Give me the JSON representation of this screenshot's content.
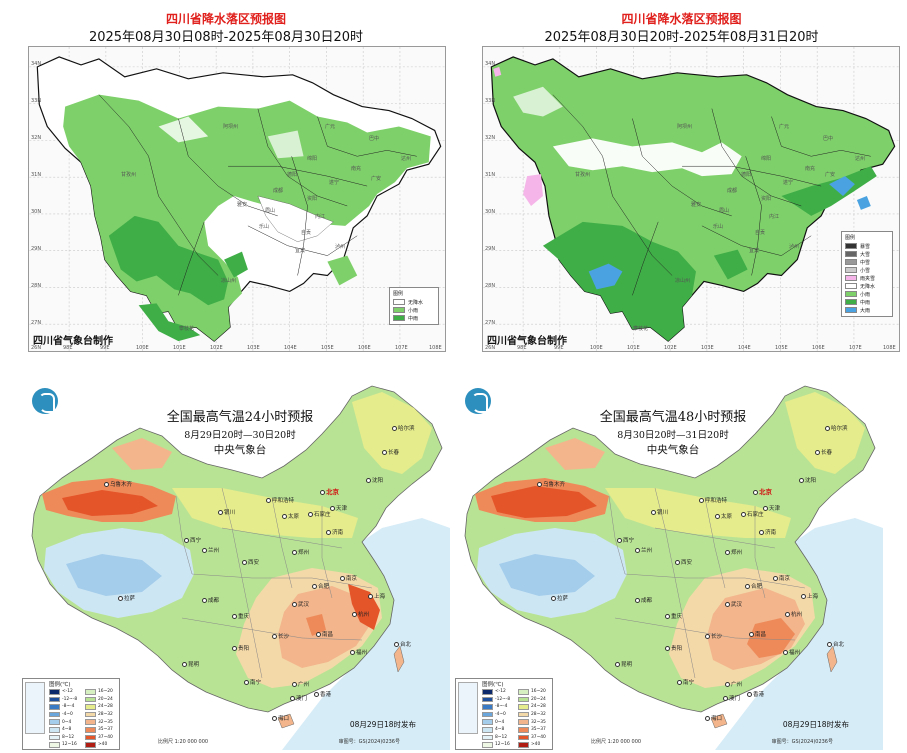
{
  "rain_maps": [
    {
      "title": "四川省降水落区预报图",
      "time_range": "2025年08月30日08时-2025年08月30日20时",
      "credit": "四川省气象台制作",
      "legend_title": "图例",
      "legend": [
        {
          "label": "无降水",
          "color": "#ffffff"
        },
        {
          "label": "小雨",
          "color": "#7ed06a"
        },
        {
          "label": "中雨",
          "color": "#3fae47"
        }
      ],
      "lon_ticks": [
        "98E",
        "99E",
        "100E",
        "101E",
        "102E",
        "103E",
        "104E",
        "105E",
        "106E",
        "107E",
        "108E"
      ],
      "lat_ticks": [
        "34N",
        "33N",
        "32N",
        "31N",
        "30N",
        "29N",
        "28N",
        "27N",
        "26N"
      ]
    },
    {
      "title": "四川省降水落区预报图",
      "time_range": "2025年08月30日20时-2025年08月31日20时",
      "credit": "四川省气象台制作",
      "legend_title": "图例",
      "legend": [
        {
          "label": "暴雪",
          "color": "#333333"
        },
        {
          "label": "大雪",
          "color": "#666666"
        },
        {
          "label": "中雪",
          "color": "#999999"
        },
        {
          "label": "小雪",
          "color": "#cccccc"
        },
        {
          "label": "雨夹雪",
          "color": "#f5b5e8"
        },
        {
          "label": "无降水",
          "color": "#ffffff"
        },
        {
          "label": "小雨",
          "color": "#7ed06a"
        },
        {
          "label": "中雨",
          "color": "#3fae47"
        },
        {
          "label": "大雨",
          "color": "#4aa3e0"
        }
      ],
      "lon_ticks": [
        "98E",
        "99E",
        "100E",
        "101E",
        "102E",
        "103E",
        "104E",
        "105E",
        "106E",
        "107E",
        "108E"
      ],
      "lat_ticks": [
        "34N",
        "33N",
        "32N",
        "31N",
        "30N",
        "29N",
        "28N",
        "27N",
        "26N"
      ]
    }
  ],
  "temp_maps": [
    {
      "title": "全国最高气温24小时预报",
      "time_range": "8月29日20时—30日20时",
      "org": "中央气象台",
      "release": "08月29日18时发布",
      "scale": "比例尺 1:20 000 000",
      "approval": "审图号：GS(2024)0236号",
      "legend_title": "图例(℃)"
    },
    {
      "title": "全国最高气温48小时预报",
      "time_range": "8月30日20时—31日20时",
      "org": "中央气象台",
      "release": "08月29日18时发布",
      "scale": "比例尺 1:20 000 000",
      "approval": "审图号：GS(2024)0236号",
      "legend_title": "图例(℃)"
    }
  ],
  "temp_legend": [
    {
      "label": "<-12",
      "color": "#0c2a6b"
    },
    {
      "label": "16~20",
      "color": "#d6f0c2"
    },
    {
      "label": "-12~-8",
      "color": "#1d4f9c"
    },
    {
      "label": "20~24",
      "color": "#b9e394"
    },
    {
      "label": "-8~-4",
      "color": "#3a7ac4"
    },
    {
      "label": "24~28",
      "color": "#e5ec8c"
    },
    {
      "label": "-4~0",
      "color": "#6aa6dc"
    },
    {
      "label": "28~32",
      "color": "#f4d9a8"
    },
    {
      "label": "0~4",
      "color": "#a4cdeb"
    },
    {
      "label": "32~35",
      "color": "#f2b58c"
    },
    {
      "label": "4~8",
      "color": "#cde6f4"
    },
    {
      "label": "35~37",
      "color": "#ee8a5a"
    },
    {
      "label": "8~12",
      "color": "#e4f3f8"
    },
    {
      "label": "37~40",
      "color": "#e5552a"
    },
    {
      "label": "12~16",
      "color": "#eef8e4"
    },
    {
      "label": ">40",
      "color": "#b01d12"
    }
  ],
  "cities_sichuan": [
    "阿坝州",
    "广元",
    "巴中",
    "达州",
    "绵阳",
    "南充",
    "甘孜州",
    "德阳",
    "遂宁",
    "广安",
    "成都",
    "资阳",
    "眉山",
    "内江",
    "雅安",
    "乐山",
    "自贡",
    "宜宾",
    "泸州",
    "凉山州",
    "攀枝花"
  ],
  "cities_china": [
    "乌鲁木齐",
    "哈尔滨",
    "长春",
    "沈阳",
    "北京",
    "天津",
    "呼和浩特",
    "银川",
    "太原",
    "石家庄",
    "济南",
    "西宁",
    "兰州",
    "郑州",
    "西安",
    "拉萨",
    "成都",
    "南京",
    "合肥",
    "上海",
    "武汉",
    "杭州",
    "重庆",
    "长沙",
    "南昌",
    "贵阳",
    "福州",
    "台北",
    "昆明",
    "南宁",
    "广州",
    "香港",
    "澳门",
    "海口"
  ]
}
